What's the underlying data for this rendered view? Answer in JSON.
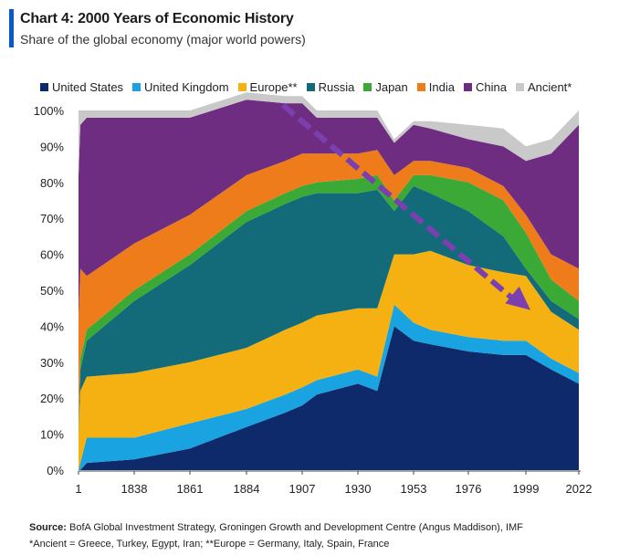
{
  "header": {
    "title": "Chart 4: 2000 Years of Economic History",
    "subtitle": "Share of the global economy (major world powers)"
  },
  "footer": {
    "source_label": "Source:",
    "source_text": " BofA Global Investment Strategy, Groningen Growth and Development Centre (Angus Maddison), IMF",
    "note": "*Ancient = Greece, Turkey, Egypt, Iran; **Europe = Germany, Italy, Spain, France"
  },
  "colors": {
    "accent": "#0b57d0",
    "arrow": "#7b3fb0"
  },
  "chart_data": {
    "type": "area",
    "stacked": true,
    "x": [
      1,
      1500,
      1820,
      1838,
      1861,
      1884,
      1900,
      1907,
      1913,
      1930,
      1938,
      1945,
      1953,
      1960,
      1976,
      1990,
      1999,
      2010,
      2022
    ],
    "xticks": [
      "1",
      "1838",
      "1861",
      "1884",
      "1907",
      "1930",
      "1953",
      "1976",
      "1999",
      "2022"
    ],
    "yticks": [
      "0%",
      "10%",
      "20%",
      "30%",
      "40%",
      "50%",
      "60%",
      "70%",
      "80%",
      "90%",
      "100%"
    ],
    "ylim": [
      0,
      100
    ],
    "legend_position": "top",
    "series": [
      {
        "name": "United States",
        "color": "#0f2a6b",
        "values": [
          0,
          0,
          2,
          3,
          6,
          12,
          16,
          18,
          21,
          24,
          22,
          40,
          36,
          35,
          33,
          32,
          32,
          28,
          24
        ]
      },
      {
        "name": "United Kingdom",
        "color": "#19a3e0",
        "values": [
          0,
          2,
          7,
          6,
          7,
          5,
          5,
          5,
          4,
          4,
          4,
          6,
          5,
          4,
          4,
          4,
          4,
          3,
          3
        ]
      },
      {
        "name": "Europe**",
        "color": "#f5b111",
        "values": [
          10,
          20,
          17,
          18,
          17,
          17,
          18,
          18,
          18,
          17,
          19,
          14,
          19,
          22,
          20,
          19,
          18,
          13,
          12
        ]
      },
      {
        "name": "Russia",
        "color": "#136b7a",
        "values": [
          0,
          6,
          10,
          20,
          27,
          35,
          35,
          35,
          34,
          32,
          33,
          12,
          19,
          16,
          15,
          10,
          2,
          3,
          3
        ]
      },
      {
        "name": "Japan",
        "color": "#3aa935",
        "values": [
          2,
          3,
          3,
          3,
          3,
          3,
          3,
          3,
          3,
          4,
          4,
          3,
          3,
          5,
          8,
          10,
          10,
          6,
          5
        ]
      },
      {
        "name": "India",
        "color": "#ef7c1b",
        "values": [
          30,
          25,
          15,
          13,
          11,
          10,
          9,
          9,
          8,
          7,
          7,
          7,
          4,
          4,
          4,
          4,
          5,
          7,
          9
        ]
      },
      {
        "name": "China",
        "color": "#6e2d80",
        "values": [
          40,
          40,
          44,
          35,
          27,
          21,
          16,
          14,
          10,
          10,
          9,
          9,
          10,
          9,
          8,
          11,
          15,
          28,
          40
        ]
      },
      {
        "name": "Ancient*",
        "color": "#c9c9c9",
        "values": [
          18,
          4,
          2,
          2,
          2,
          2,
          2,
          2,
          2,
          2,
          2,
          1,
          1,
          2,
          4,
          5,
          4,
          4,
          4
        ]
      }
    ]
  }
}
